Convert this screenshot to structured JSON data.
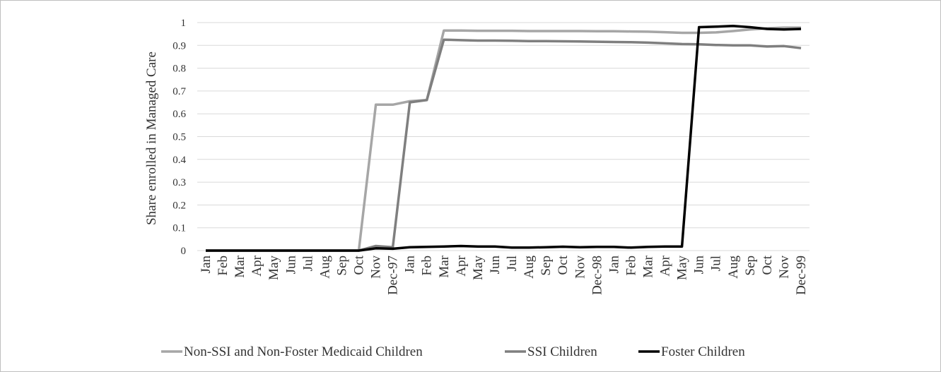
{
  "chart_data": {
    "type": "line",
    "ylabel": "Share enrolled in Managed Care",
    "categories": [
      "Jan",
      "Feb",
      "Mar",
      "Apr",
      "May",
      "Jun",
      "Jul",
      "Aug",
      "Sep",
      "Oct",
      "Nov",
      "Dec-97",
      "Jan",
      "Feb",
      "Mar",
      "Apr",
      "May",
      "Jun",
      "Jul",
      "Aug",
      "Sep",
      "Oct",
      "Nov",
      "Dec-98",
      "Jan",
      "Feb",
      "Mar",
      "Apr",
      "May",
      "Jun",
      "Jul",
      "Aug",
      "Sep",
      "Oct",
      "Nov",
      "Dec-99"
    ],
    "ylim": [
      0,
      1
    ],
    "yticks": [
      0,
      0.1,
      0.2,
      0.3,
      0.4,
      0.5,
      0.6,
      0.7,
      0.8,
      0.9,
      1
    ],
    "grid": true,
    "legend": "bottom",
    "series": [
      {
        "name": "Non-SSI and Non-Foster Medicaid Children",
        "color": "#a6a6a6",
        "values": [
          0,
          0,
          0,
          0,
          0,
          0,
          0,
          0,
          0,
          0,
          0.64,
          0.64,
          0.655,
          0.66,
          0.965,
          0.965,
          0.964,
          0.964,
          0.964,
          0.963,
          0.963,
          0.963,
          0.963,
          0.962,
          0.962,
          0.961,
          0.96,
          0.958,
          0.955,
          0.955,
          0.957,
          0.963,
          0.97,
          0.975,
          0.978,
          0.978
        ]
      },
      {
        "name": "SSI Children",
        "color": "#7f7f7f",
        "values": [
          0,
          0,
          0,
          0,
          0,
          0,
          0,
          0,
          0,
          0,
          0.02,
          0.015,
          0.65,
          0.66,
          0.925,
          0.923,
          0.921,
          0.921,
          0.92,
          0.919,
          0.919,
          0.918,
          0.917,
          0.916,
          0.915,
          0.914,
          0.912,
          0.909,
          0.906,
          0.905,
          0.902,
          0.9,
          0.9,
          0.895,
          0.897,
          0.888
        ]
      },
      {
        "name": "Foster Children",
        "color": "#000000",
        "values": [
          0,
          0,
          0,
          0,
          0,
          0,
          0,
          0,
          0,
          0,
          0.01,
          0.008,
          0.015,
          0.016,
          0.018,
          0.02,
          0.018,
          0.018,
          0.013,
          0.013,
          0.015,
          0.017,
          0.015,
          0.016,
          0.016,
          0.013,
          0.016,
          0.018,
          0.018,
          0.98,
          0.982,
          0.985,
          0.98,
          0.972,
          0.97,
          0.972
        ]
      }
    ]
  }
}
